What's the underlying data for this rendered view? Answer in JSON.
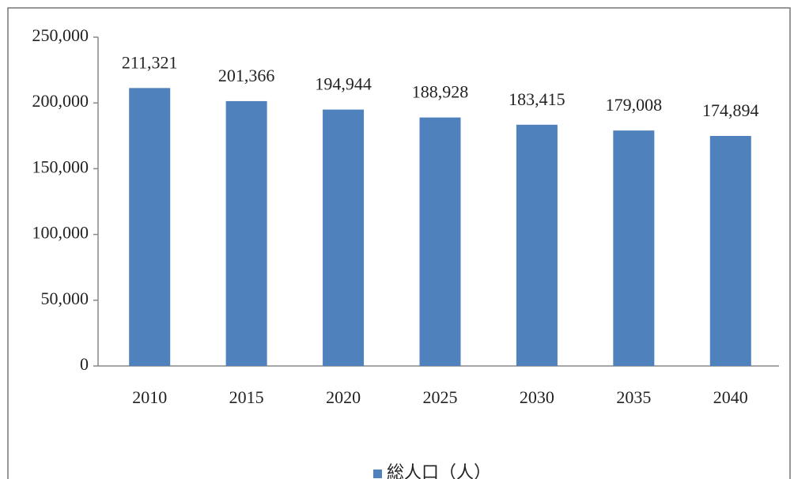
{
  "chart_data": {
    "type": "bar",
    "categories": [
      "2010",
      "2015",
      "2020",
      "2025",
      "2030",
      "2035",
      "2040"
    ],
    "series": [
      {
        "name": "総人口（人）",
        "color": "#4f81bd",
        "values": [
          211321,
          201366,
          194944,
          188928,
          183415,
          179008,
          174894
        ],
        "value_labels": [
          "211,321",
          "201,366",
          "194,944",
          "188,928",
          "183,415",
          "179,008",
          "174,894"
        ]
      }
    ],
    "ylim": [
      0,
      250000
    ],
    "yticks": [
      0,
      {
        "value": 50000,
        "label": "50,000"
      },
      {
        "value": 100000,
        "label": "100,000"
      },
      {
        "value": 150000,
        "label": "150,000"
      },
      {
        "value": 200000,
        "label": "200,000"
      },
      {
        "value": 250000,
        "label": "250,000"
      }
    ],
    "grid": false,
    "legend": "bottom"
  }
}
